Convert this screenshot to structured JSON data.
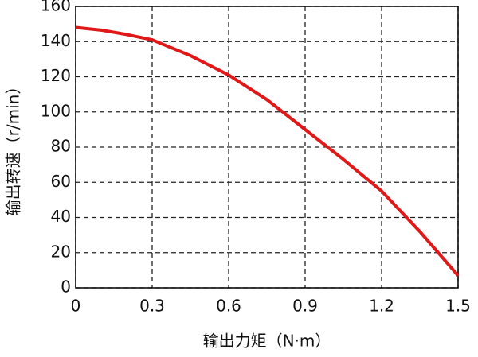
{
  "chart_data": {
    "type": "line",
    "x_label": "输出力矩（N·m）",
    "y_label": "输出转速（r/min）",
    "x": [
      0,
      0.1,
      0.2,
      0.3,
      0.45,
      0.6,
      0.75,
      0.9,
      1.05,
      1.2,
      1.35,
      1.5
    ],
    "series": [
      {
        "name": "speed",
        "color": "#e01818",
        "values": [
          148,
          146.5,
          144,
          141,
          132,
          121,
          107,
          90,
          73,
          55,
          32,
          7
        ]
      }
    ],
    "xlim": [
      0,
      1.5
    ],
    "xticks": [
      0,
      0.3,
      0.6,
      0.9,
      1.2,
      1.5
    ],
    "ylim": [
      0,
      160
    ],
    "yticks": [
      0,
      20,
      40,
      60,
      80,
      100,
      120,
      140,
      160
    ],
    "grid": true
  }
}
